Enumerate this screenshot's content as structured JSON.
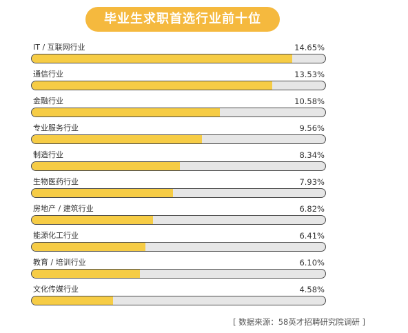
{
  "colors": {
    "accent": "#F5B93E",
    "bar_fill": "#F6CC45",
    "track": "#E6E6E6"
  },
  "chart_data": {
    "type": "bar",
    "orientation": "horizontal",
    "title": "毕业生求职首选行业前十位",
    "categories": [
      "IT / 互联网行业",
      "通信行业",
      "金融行业",
      "专业服务行业",
      "制造行业",
      "生物医药行业",
      "房地产 / 建筑行业",
      "能源化工行业",
      "教育 / 培训行业",
      "文化传媒行业"
    ],
    "values": [
      14.65,
      13.53,
      10.58,
      9.56,
      8.34,
      7.93,
      6.82,
      6.41,
      6.1,
      4.58
    ],
    "value_labels": [
      "14.65%",
      "13.53%",
      "10.58%",
      "9.56%",
      "8.34%",
      "7.93%",
      "6.82%",
      "6.41%",
      "6.10%",
      "4.58%"
    ],
    "xlim": [
      0,
      16.5
    ],
    "grid": false,
    "source": "[ 数据来源：58英才招聘研究院调研 ]"
  }
}
